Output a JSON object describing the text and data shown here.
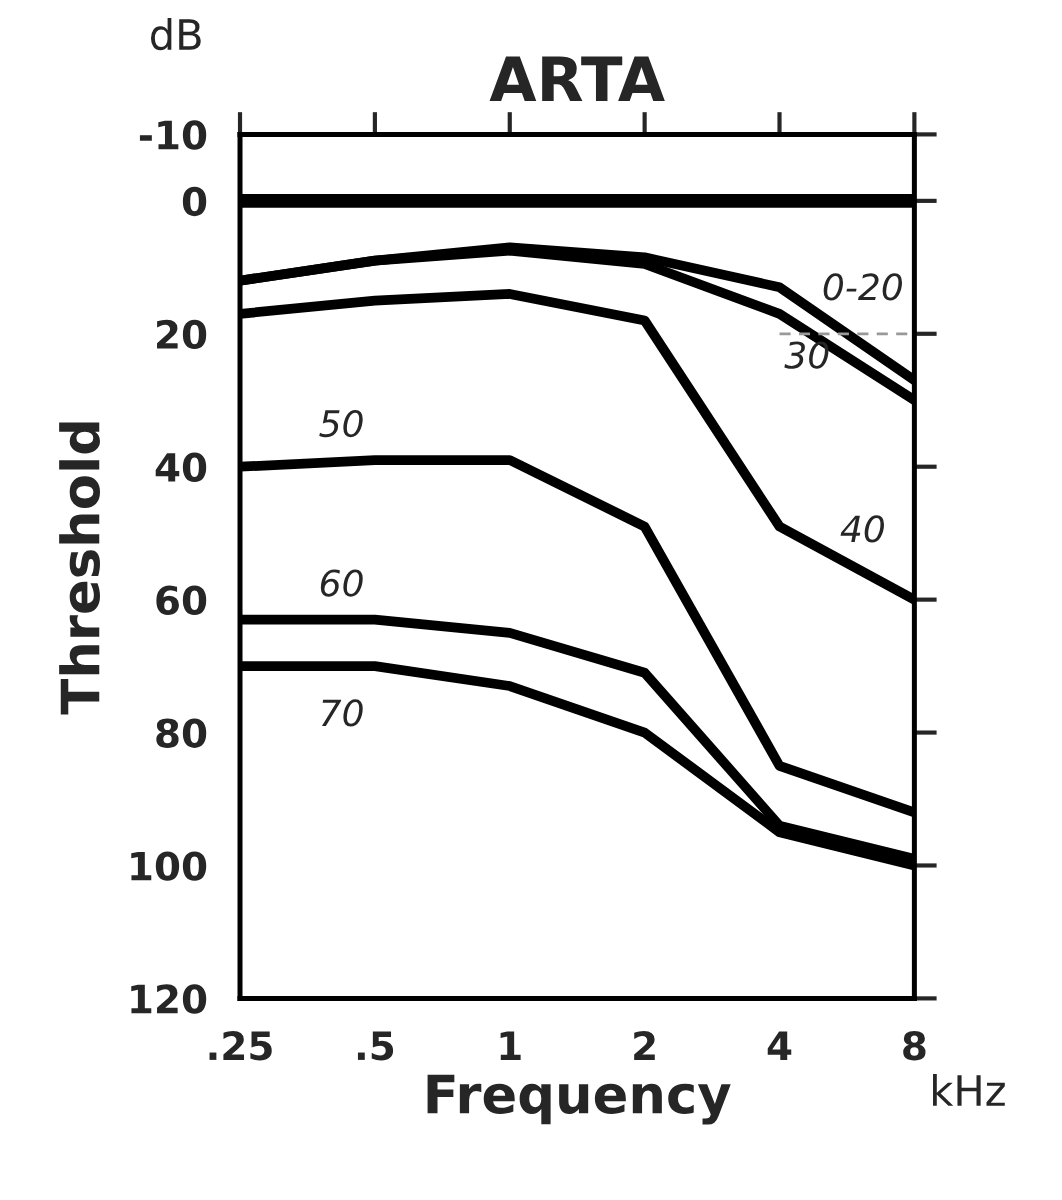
{
  "chart_data": {
    "type": "line",
    "title": "ARTA",
    "xlabel": "Frequency",
    "ylabel": "Threshold",
    "categories": [
      ".25",
      ".5",
      "1",
      "2",
      "4",
      "8"
    ],
    "ylim": [
      120,
      -10
    ],
    "yticks": [
      -10,
      0,
      20,
      40,
      60,
      80,
      100,
      120
    ],
    "grid": false,
    "legend": false,
    "marker": "none",
    "series": [
      {
        "color": "#000000",
        "values": [
          0,
          0,
          0,
          0,
          0,
          0
        ]
      },
      {
        "color": "#000000",
        "values": [
          12,
          9,
          7,
          8.5,
          13,
          27
        ]
      },
      {
        "color": "#000000",
        "values": [
          12,
          9,
          7.5,
          9.5,
          17,
          30
        ]
      },
      {
        "color": "#000000",
        "values": [
          17,
          15,
          14,
          18,
          49,
          60
        ]
      },
      {
        "color": "#000000",
        "values": [
          40,
          39,
          39,
          49,
          85,
          92
        ]
      },
      {
        "color": "#000000",
        "values": [
          63,
          63,
          65,
          71,
          94,
          99
        ]
      },
      {
        "color": "#000000",
        "values": [
          70,
          70,
          73,
          80,
          95,
          100
        ]
      },
      {
        "color": "#999999",
        "line_style": "dashed",
        "values": [
          null,
          null,
          null,
          null,
          20,
          20
        ]
      }
    ],
    "annotations": [
      {
        "text": "0-20",
        "x": "4",
        "y": 13
      },
      {
        "text": "30",
        "x": "4",
        "y": 17
      },
      {
        "text": "50",
        "x": ".5",
        "y": 39
      },
      {
        "text": "40",
        "x": "4",
        "y": 49
      },
      {
        "text": "60",
        "x": ".5",
        "y": 63
      },
      {
        "text": "70",
        "x": ".5",
        "y": 70
      },
      "dB",
      "kHz"
    ]
  }
}
